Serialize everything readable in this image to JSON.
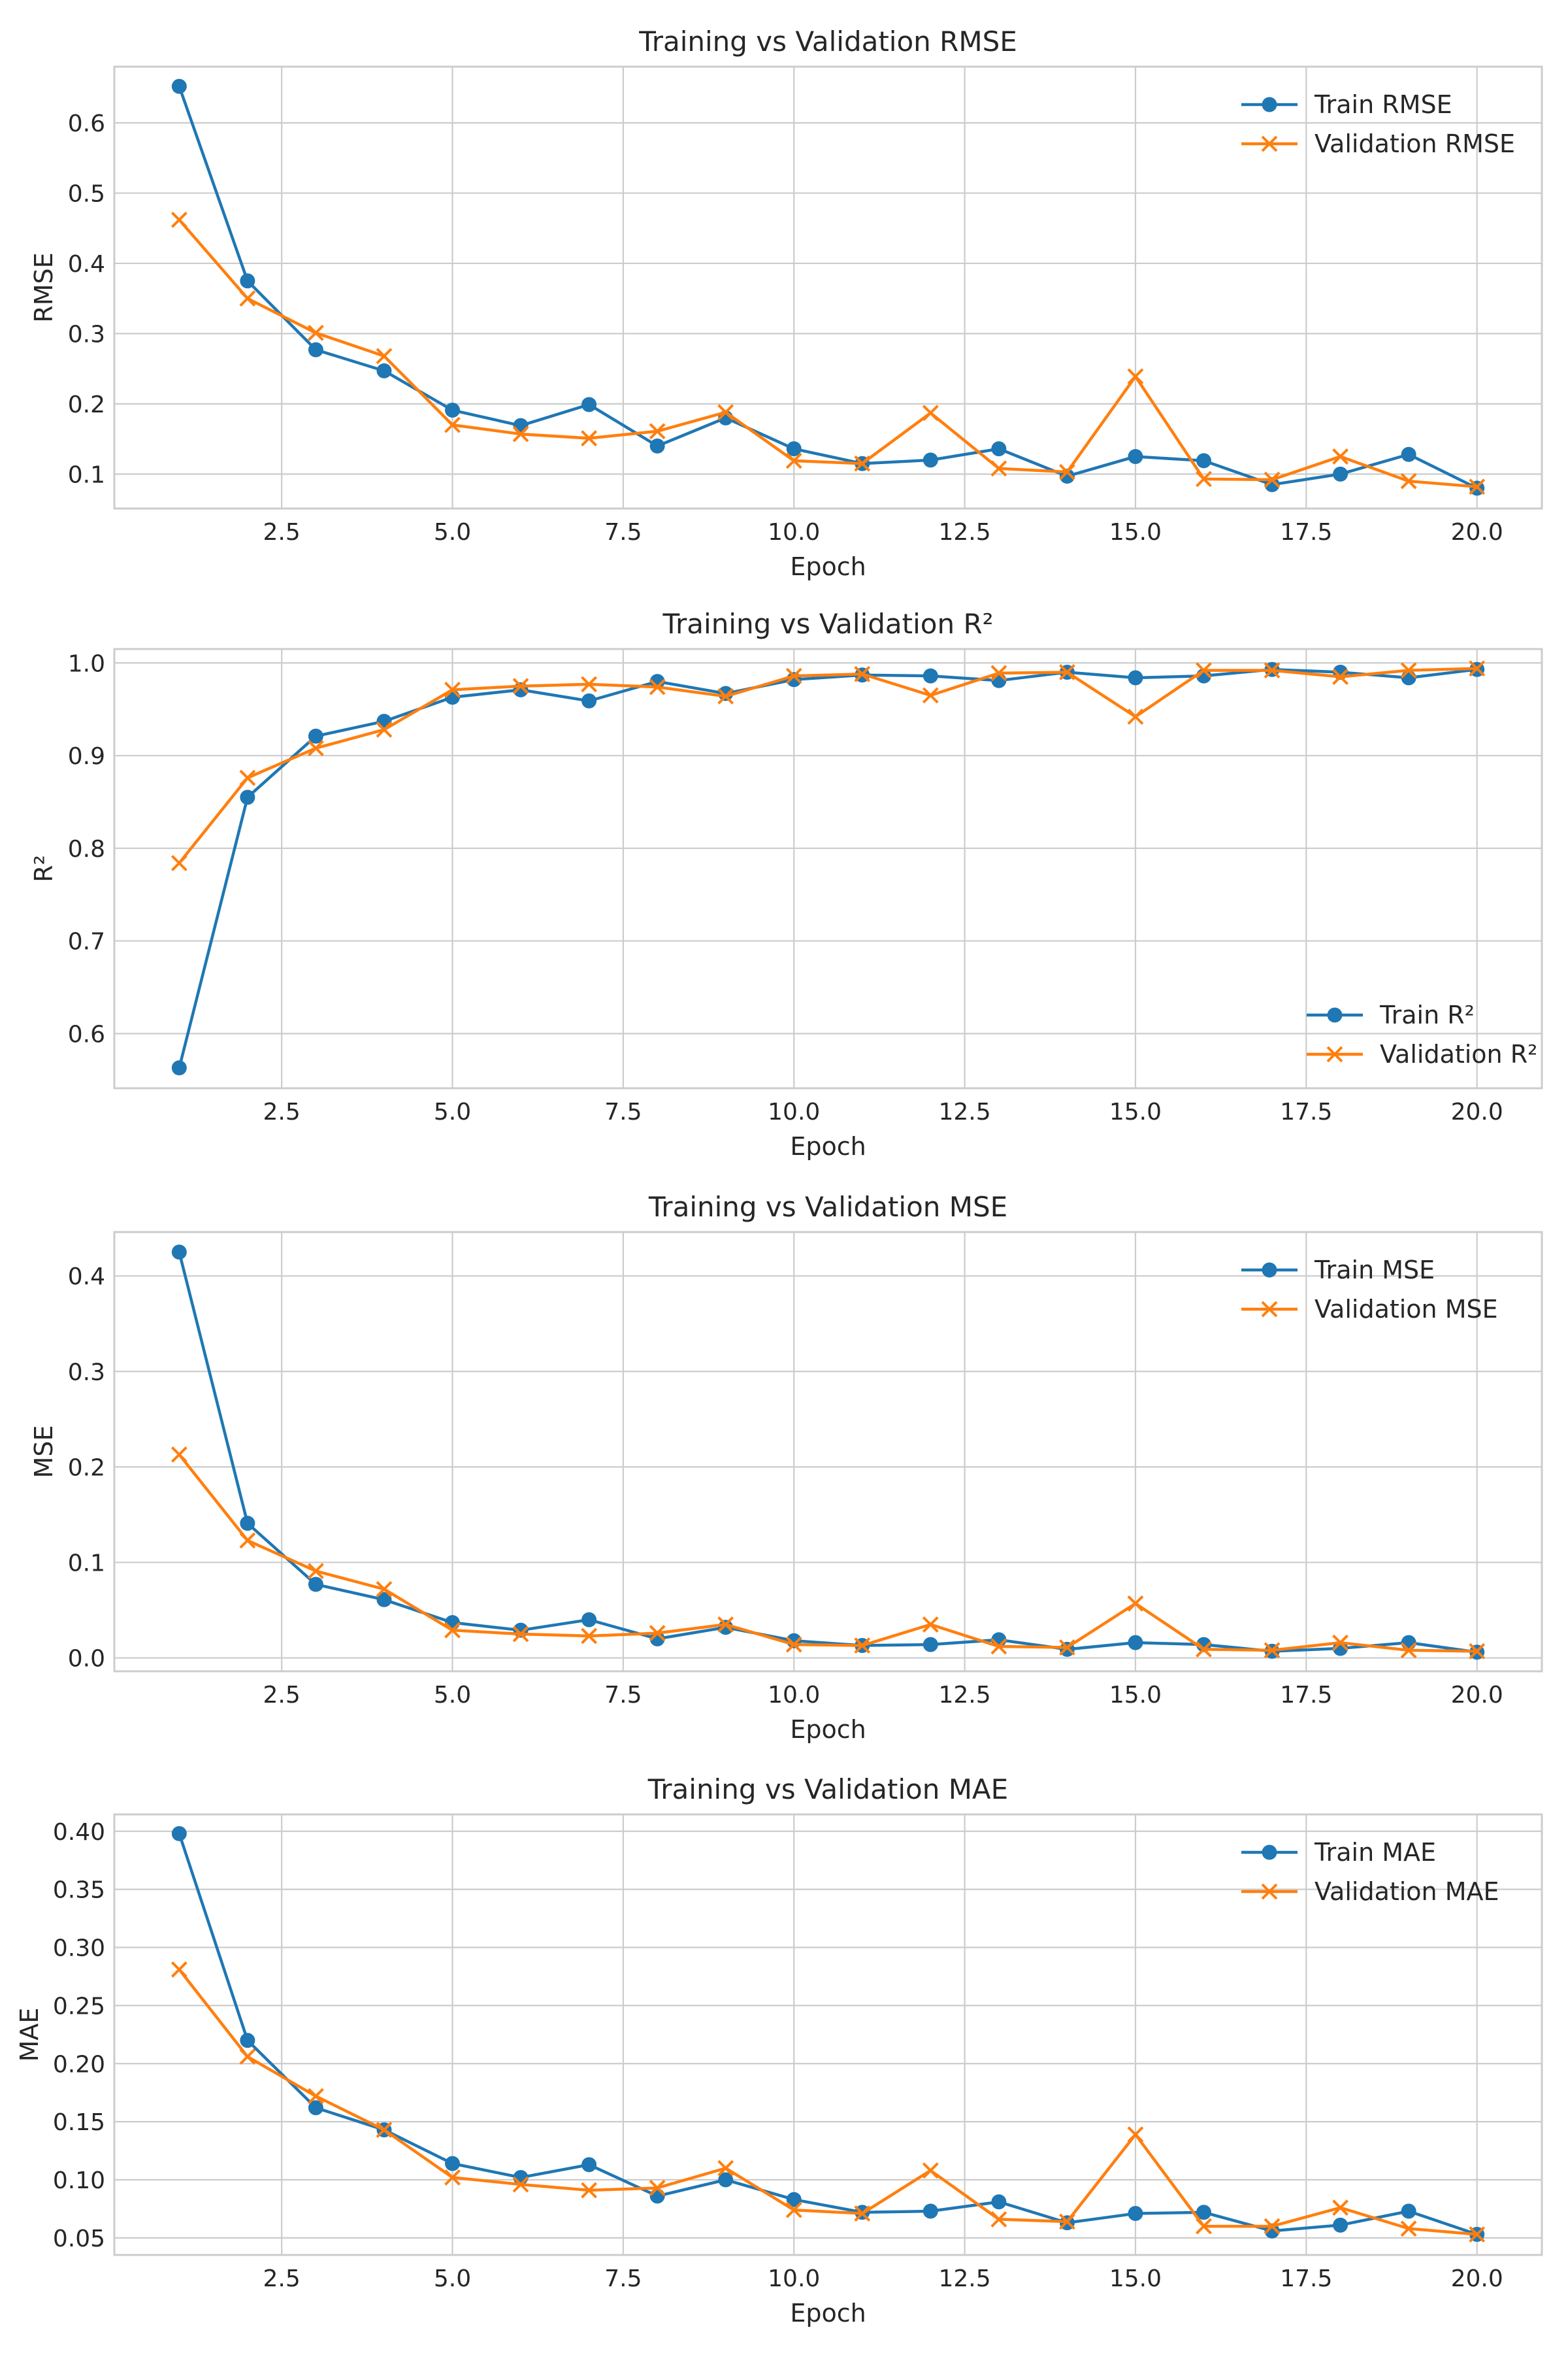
{
  "colors": {
    "train": "#1f77b4",
    "validation": "#ff7f0e",
    "grid": "#cccccc",
    "frame": "#cccccc"
  },
  "chart_data": [
    {
      "type": "line",
      "title": "Training vs Validation RMSE",
      "xlabel": "Epoch",
      "ylabel": "RMSE",
      "xlim": [
        0.05,
        20.95
      ],
      "ylim": [
        0.051,
        0.68
      ],
      "xticks": [
        2.5,
        5.0,
        7.5,
        10.0,
        12.5,
        15.0,
        17.5,
        20.0
      ],
      "xtick_labels": [
        "2.5",
        "5.0",
        "7.5",
        "10.0",
        "12.5",
        "15.0",
        "17.5",
        "20.0"
      ],
      "yticks": [
        0.1,
        0.2,
        0.3,
        0.4,
        0.5,
        0.6
      ],
      "ytick_labels": [
        "0.1",
        "0.2",
        "0.3",
        "0.4",
        "0.5",
        "0.6"
      ],
      "grid": true,
      "legend_position": "upper right",
      "x": [
        1,
        2,
        3,
        4,
        5,
        6,
        7,
        8,
        9,
        10,
        11,
        12,
        13,
        14,
        15,
        16,
        17,
        18,
        19,
        20
      ],
      "series": [
        {
          "name": "Train RMSE",
          "marker": "circle",
          "color": "#1f77b4",
          "values": [
            0.652,
            0.375,
            0.277,
            0.247,
            0.191,
            0.169,
            0.199,
            0.14,
            0.18,
            0.136,
            0.115,
            0.12,
            0.136,
            0.097,
            0.125,
            0.119,
            0.085,
            0.1,
            0.128,
            0.08
          ]
        },
        {
          "name": "Validation RMSE",
          "marker": "x",
          "color": "#ff7f0e",
          "values": [
            0.462,
            0.35,
            0.301,
            0.268,
            0.17,
            0.157,
            0.151,
            0.161,
            0.188,
            0.119,
            0.115,
            0.187,
            0.108,
            0.103,
            0.239,
            0.093,
            0.092,
            0.125,
            0.09,
            0.082
          ]
        }
      ]
    },
    {
      "type": "line",
      "title": "Training vs Validation R²",
      "xlabel": "Epoch",
      "ylabel": "R²",
      "xlim": [
        0.05,
        20.95
      ],
      "ylim": [
        0.541,
        1.015
      ],
      "xticks": [
        2.5,
        5.0,
        7.5,
        10.0,
        12.5,
        15.0,
        17.5,
        20.0
      ],
      "xtick_labels": [
        "2.5",
        "5.0",
        "7.5",
        "10.0",
        "12.5",
        "15.0",
        "17.5",
        "20.0"
      ],
      "yticks": [
        0.6,
        0.7,
        0.8,
        0.9,
        1.0
      ],
      "ytick_labels": [
        "0.6",
        "0.7",
        "0.8",
        "0.9",
        "1.0"
      ],
      "grid": true,
      "legend_position": "lower right",
      "x": [
        1,
        2,
        3,
        4,
        5,
        6,
        7,
        8,
        9,
        10,
        11,
        12,
        13,
        14,
        15,
        16,
        17,
        18,
        19,
        20
      ],
      "series": [
        {
          "name": "Train R²",
          "marker": "circle",
          "color": "#1f77b4",
          "values": [
            0.563,
            0.855,
            0.921,
            0.937,
            0.963,
            0.971,
            0.959,
            0.98,
            0.967,
            0.982,
            0.987,
            0.986,
            0.981,
            0.99,
            0.984,
            0.986,
            0.993,
            0.99,
            0.984,
            0.993
          ]
        },
        {
          "name": "Validation R²",
          "marker": "x",
          "color": "#ff7f0e",
          "values": [
            0.784,
            0.876,
            0.908,
            0.928,
            0.971,
            0.975,
            0.977,
            0.974,
            0.964,
            0.986,
            0.988,
            0.965,
            0.989,
            0.99,
            0.942,
            0.992,
            0.992,
            0.985,
            0.992,
            0.994
          ]
        }
      ]
    },
    {
      "type": "line",
      "title": "Training vs Validation MSE",
      "xlabel": "Epoch",
      "ylabel": "MSE",
      "xlim": [
        0.05,
        20.95
      ],
      "ylim": [
        -0.014,
        0.446
      ],
      "xticks": [
        2.5,
        5.0,
        7.5,
        10.0,
        12.5,
        15.0,
        17.5,
        20.0
      ],
      "xtick_labels": [
        "2.5",
        "5.0",
        "7.5",
        "10.0",
        "12.5",
        "15.0",
        "17.5",
        "20.0"
      ],
      "yticks": [
        0.0,
        0.1,
        0.2,
        0.3,
        0.4
      ],
      "ytick_labels": [
        "0.0",
        "0.1",
        "0.2",
        "0.3",
        "0.4"
      ],
      "grid": true,
      "legend_position": "upper right",
      "x": [
        1,
        2,
        3,
        4,
        5,
        6,
        7,
        8,
        9,
        10,
        11,
        12,
        13,
        14,
        15,
        16,
        17,
        18,
        19,
        20
      ],
      "series": [
        {
          "name": "Train MSE",
          "marker": "circle",
          "color": "#1f77b4",
          "values": [
            0.425,
            0.141,
            0.077,
            0.061,
            0.037,
            0.029,
            0.04,
            0.02,
            0.032,
            0.018,
            0.013,
            0.014,
            0.019,
            0.009,
            0.016,
            0.014,
            0.007,
            0.01,
            0.016,
            0.006
          ]
        },
        {
          "name": "Validation MSE",
          "marker": "x",
          "color": "#ff7f0e",
          "values": [
            0.213,
            0.123,
            0.091,
            0.072,
            0.029,
            0.025,
            0.023,
            0.026,
            0.035,
            0.014,
            0.013,
            0.035,
            0.012,
            0.011,
            0.057,
            0.009,
            0.008,
            0.016,
            0.008,
            0.007
          ]
        }
      ]
    },
    {
      "type": "line",
      "title": "Training vs Validation MAE",
      "xlabel": "Epoch",
      "ylabel": "MAE",
      "xlim": [
        0.05,
        20.95
      ],
      "ylim": [
        0.0353,
        0.4145
      ],
      "xticks": [
        2.5,
        5.0,
        7.5,
        10.0,
        12.5,
        15.0,
        17.5,
        20.0
      ],
      "xtick_labels": [
        "2.5",
        "5.0",
        "7.5",
        "10.0",
        "12.5",
        "15.0",
        "17.5",
        "20.0"
      ],
      "yticks": [
        0.05,
        0.1,
        0.15,
        0.2,
        0.25,
        0.3,
        0.35,
        0.4
      ],
      "ytick_labels": [
        "0.05",
        "0.10",
        "0.15",
        "0.20",
        "0.25",
        "0.30",
        "0.35",
        "0.40"
      ],
      "grid": true,
      "legend_position": "upper right",
      "x": [
        1,
        2,
        3,
        4,
        5,
        6,
        7,
        8,
        9,
        10,
        11,
        12,
        13,
        14,
        15,
        16,
        17,
        18,
        19,
        20
      ],
      "series": [
        {
          "name": "Train MAE",
          "marker": "circle",
          "color": "#1f77b4",
          "values": [
            0.398,
            0.22,
            0.162,
            0.143,
            0.114,
            0.102,
            0.113,
            0.086,
            0.1,
            0.083,
            0.072,
            0.073,
            0.081,
            0.063,
            0.071,
            0.072,
            0.056,
            0.061,
            0.073,
            0.053
          ]
        },
        {
          "name": "Validation MAE",
          "marker": "x",
          "color": "#ff7f0e",
          "values": [
            0.281,
            0.206,
            0.172,
            0.143,
            0.102,
            0.096,
            0.091,
            0.093,
            0.11,
            0.074,
            0.071,
            0.108,
            0.066,
            0.064,
            0.139,
            0.06,
            0.06,
            0.076,
            0.058,
            0.053
          ]
        }
      ]
    }
  ]
}
